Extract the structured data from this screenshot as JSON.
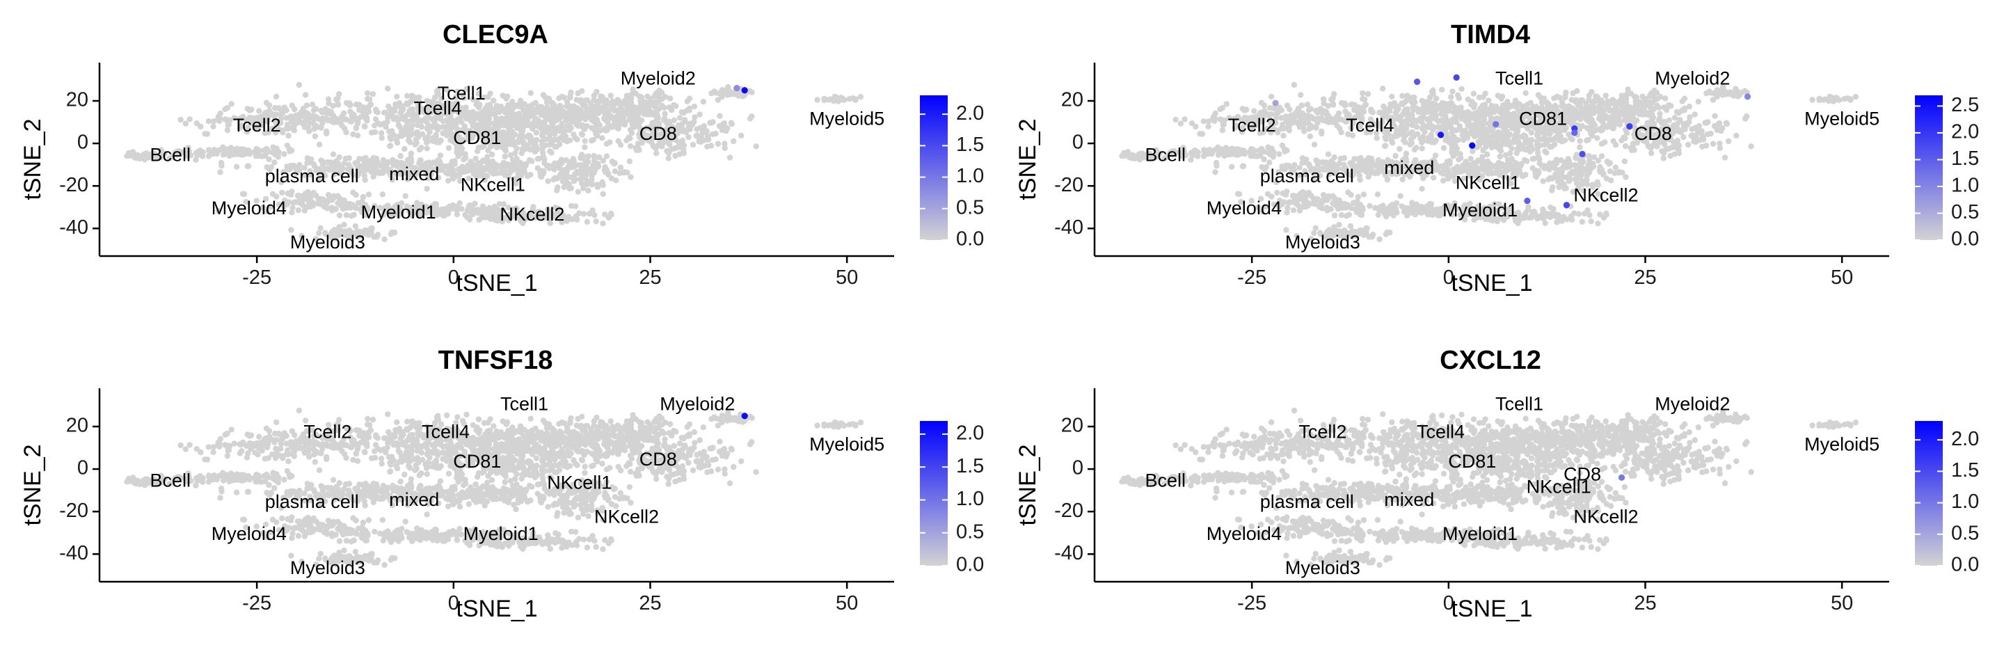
{
  "page": {
    "background": "#ffffff",
    "point_color_low": "#d3d3d3",
    "point_color_high": "#0000ff"
  },
  "chart_data": [
    {
      "type": "scatter",
      "title": "CLEC9A",
      "xlabel": "tSNE_1",
      "ylabel": "tSNE_2",
      "xlim": [
        -45,
        56
      ],
      "ylim": [
        -53,
        38
      ],
      "xticks": [
        -25,
        0,
        25,
        50
      ],
      "yticks": [
        -40,
        -20,
        0,
        20
      ],
      "xtick_labels": [
        "-25",
        "0",
        "25",
        "50"
      ],
      "ytick_labels": [
        "-40",
        "-20",
        "0",
        "20"
      ],
      "colorbar": {
        "min": 0,
        "max": 2.3,
        "ticks": [
          0,
          0.5,
          1,
          1.5,
          2
        ],
        "tick_labels": [
          "0.0",
          "0.5",
          "1.0",
          "1.5",
          "2.0"
        ]
      },
      "cluster_labels": [
        {
          "text": "Bcell",
          "x": -36,
          "y": -6
        },
        {
          "text": "Tcell2",
          "x": -25,
          "y": 8
        },
        {
          "text": "Tcell1",
          "x": 1,
          "y": 23
        },
        {
          "text": "Tcell4",
          "x": -2,
          "y": 16
        },
        {
          "text": "CD81",
          "x": 3,
          "y": 2
        },
        {
          "text": "CD8",
          "x": 26,
          "y": 4
        },
        {
          "text": "plasma cell",
          "x": -18,
          "y": -16
        },
        {
          "text": "mixed",
          "x": -5,
          "y": -15
        },
        {
          "text": "NKcell1",
          "x": 5,
          "y": -20
        },
        {
          "text": "NKcell2",
          "x": 10,
          "y": -34
        },
        {
          "text": "Myeloid1",
          "x": -7,
          "y": -33
        },
        {
          "text": "Myeloid3",
          "x": -16,
          "y": -47
        },
        {
          "text": "Myeloid4",
          "x": -26,
          "y": -31
        },
        {
          "text": "Myeloid2",
          "x": 26,
          "y": 30
        },
        {
          "text": "Myeloid5",
          "x": 50,
          "y": 11
        }
      ],
      "expressing_cells": [
        {
          "x": 37,
          "y": 25,
          "value": 2.2
        },
        {
          "x": 36,
          "y": 26,
          "value": 0.8
        }
      ]
    },
    {
      "type": "scatter",
      "title": "TIMD4",
      "xlabel": "tSNE_1",
      "ylabel": "tSNE_2",
      "xlim": [
        -45,
        56
      ],
      "ylim": [
        -53,
        38
      ],
      "xticks": [
        -25,
        0,
        25,
        50
      ],
      "yticks": [
        -40,
        -20,
        0,
        20
      ],
      "xtick_labels": [
        "-25",
        "0",
        "25",
        "50"
      ],
      "ytick_labels": [
        "-40",
        "-20",
        "0",
        "20"
      ],
      "colorbar": {
        "min": 0,
        "max": 2.7,
        "ticks": [
          0,
          0.5,
          1,
          1.5,
          2,
          2.5
        ],
        "tick_labels": [
          "0.0",
          "0.5",
          "1.0",
          "1.5",
          "2.0",
          "2.5"
        ]
      },
      "cluster_labels": [
        {
          "text": "Bcell",
          "x": -36,
          "y": -6
        },
        {
          "text": "Tcell2",
          "x": -25,
          "y": 8
        },
        {
          "text": "Tcell1",
          "x": 9,
          "y": 30
        },
        {
          "text": "Tcell4",
          "x": -10,
          "y": 8
        },
        {
          "text": "CD81",
          "x": 12,
          "y": 11
        },
        {
          "text": "CD8",
          "x": 26,
          "y": 4
        },
        {
          "text": "plasma cell",
          "x": -18,
          "y": -16
        },
        {
          "text": "mixed",
          "x": -5,
          "y": -12
        },
        {
          "text": "NKcell1",
          "x": 5,
          "y": -19
        },
        {
          "text": "NKcell2",
          "x": 20,
          "y": -25
        },
        {
          "text": "Myeloid1",
          "x": 4,
          "y": -32
        },
        {
          "text": "Myeloid3",
          "x": -16,
          "y": -47
        },
        {
          "text": "Myeloid4",
          "x": -26,
          "y": -31
        },
        {
          "text": "Myeloid2",
          "x": 31,
          "y": 30
        },
        {
          "text": "Myeloid5",
          "x": 50,
          "y": 11
        }
      ],
      "expressing_cells": [
        {
          "x": -4,
          "y": 29,
          "value": 1.6
        },
        {
          "x": 1,
          "y": 31,
          "value": 1.8
        },
        {
          "x": -1,
          "y": 4,
          "value": 2.4
        },
        {
          "x": 3,
          "y": -1,
          "value": 2.6
        },
        {
          "x": 6,
          "y": 9,
          "value": 1.2
        },
        {
          "x": 16,
          "y": 7,
          "value": 2.0
        },
        {
          "x": 16,
          "y": 5,
          "value": 1.4
        },
        {
          "x": 23,
          "y": 8,
          "value": 1.9
        },
        {
          "x": 17,
          "y": -5,
          "value": 1.7
        },
        {
          "x": 10,
          "y": -27,
          "value": 1.5
        },
        {
          "x": 15,
          "y": -29,
          "value": 1.8
        },
        {
          "x": 38,
          "y": 22,
          "value": 1.0
        },
        {
          "x": -22,
          "y": 19,
          "value": 0.6
        }
      ]
    },
    {
      "type": "scatter",
      "title": "TNFSF18",
      "xlabel": "tSNE_1",
      "ylabel": "tSNE_2",
      "xlim": [
        -45,
        56
      ],
      "ylim": [
        -53,
        38
      ],
      "xticks": [
        -25,
        0,
        25,
        50
      ],
      "yticks": [
        -40,
        -20,
        0,
        20
      ],
      "xtick_labels": [
        "-25",
        "0",
        "25",
        "50"
      ],
      "ytick_labels": [
        "-40",
        "-20",
        "0",
        "20"
      ],
      "colorbar": {
        "min": 0,
        "max": 2.2,
        "ticks": [
          0,
          0.5,
          1,
          1.5,
          2
        ],
        "tick_labels": [
          "0.0",
          "0.5",
          "1.0",
          "1.5",
          "2.0"
        ]
      },
      "cluster_labels": [
        {
          "text": "Bcell",
          "x": -36,
          "y": -6
        },
        {
          "text": "Tcell2",
          "x": -16,
          "y": 17
        },
        {
          "text": "Tcell1",
          "x": 9,
          "y": 30
        },
        {
          "text": "Tcell4",
          "x": -1,
          "y": 17
        },
        {
          "text": "CD81",
          "x": 3,
          "y": 3
        },
        {
          "text": "CD8",
          "x": 26,
          "y": 4
        },
        {
          "text": "plasma cell",
          "x": -18,
          "y": -16
        },
        {
          "text": "mixed",
          "x": -5,
          "y": -15
        },
        {
          "text": "NKcell1",
          "x": 16,
          "y": -7
        },
        {
          "text": "NKcell2",
          "x": 22,
          "y": -23
        },
        {
          "text": "Myeloid1",
          "x": 6,
          "y": -31
        },
        {
          "text": "Myeloid3",
          "x": -16,
          "y": -47
        },
        {
          "text": "Myeloid4",
          "x": -26,
          "y": -31
        },
        {
          "text": "Myeloid2",
          "x": 31,
          "y": 30
        },
        {
          "text": "Myeloid5",
          "x": 50,
          "y": 11
        }
      ],
      "expressing_cells": [
        {
          "x": 37,
          "y": 25,
          "value": 2.1
        }
      ]
    },
    {
      "type": "scatter",
      "title": "CXCL12",
      "xlabel": "tSNE_1",
      "ylabel": "tSNE_2",
      "xlim": [
        -45,
        56
      ],
      "ylim": [
        -53,
        38
      ],
      "xticks": [
        -25,
        0,
        25,
        50
      ],
      "yticks": [
        -40,
        -20,
        0,
        20
      ],
      "xtick_labels": [
        "-25",
        "0",
        "25",
        "50"
      ],
      "ytick_labels": [
        "-40",
        "-20",
        "0",
        "20"
      ],
      "colorbar": {
        "min": 0,
        "max": 2.3,
        "ticks": [
          0,
          0.5,
          1,
          1.5,
          2
        ],
        "tick_labels": [
          "0.0",
          "0.5",
          "1.0",
          "1.5",
          "2.0"
        ]
      },
      "cluster_labels": [
        {
          "text": "Bcell",
          "x": -36,
          "y": -6
        },
        {
          "text": "Tcell2",
          "x": -16,
          "y": 17
        },
        {
          "text": "Tcell1",
          "x": 9,
          "y": 30
        },
        {
          "text": "Tcell4",
          "x": -1,
          "y": 17
        },
        {
          "text": "CD81",
          "x": 3,
          "y": 3
        },
        {
          "text": "CD8",
          "x": 17,
          "y": -3
        },
        {
          "text": "plasma cell",
          "x": -18,
          "y": -16
        },
        {
          "text": "mixed",
          "x": -5,
          "y": -15
        },
        {
          "text": "NKcell1",
          "x": 14,
          "y": -9
        },
        {
          "text": "NKcell2",
          "x": 20,
          "y": -23
        },
        {
          "text": "Myeloid1",
          "x": 4,
          "y": -31
        },
        {
          "text": "Myeloid3",
          "x": -16,
          "y": -47
        },
        {
          "text": "Myeloid4",
          "x": -26,
          "y": -31
        },
        {
          "text": "Myeloid2",
          "x": 31,
          "y": 30
        },
        {
          "text": "Myeloid5",
          "x": 50,
          "y": 11
        }
      ],
      "expressing_cells": [
        {
          "x": 22,
          "y": -4,
          "value": 1.0
        }
      ]
    }
  ]
}
